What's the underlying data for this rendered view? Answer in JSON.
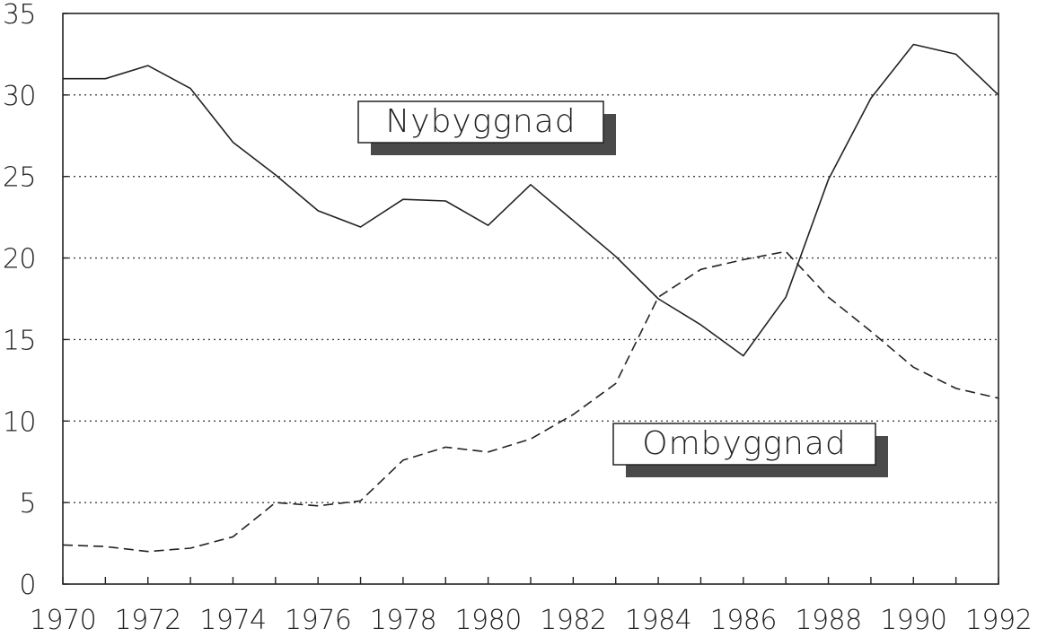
{
  "chart_data": {
    "type": "line",
    "title": "",
    "xlabel": "",
    "ylabel": "",
    "x": [
      1970,
      1971,
      1972,
      1973,
      1974,
      1975,
      1976,
      1977,
      1978,
      1979,
      1980,
      1981,
      1982,
      1983,
      1984,
      1985,
      1986,
      1987,
      1988,
      1989,
      1990,
      1991,
      1992
    ],
    "x_ticks": [
      "1970",
      "1972",
      "1974",
      "1976",
      "1978",
      "1980",
      "1982",
      "1984",
      "1986",
      "1988",
      "1990",
      "1992"
    ],
    "y_ticks": [
      "0",
      "5",
      "10",
      "15",
      "20",
      "25",
      "30",
      "35"
    ],
    "xlim": [
      1970,
      1992
    ],
    "ylim": [
      0,
      35
    ],
    "grid": true,
    "series": [
      {
        "name": "Nybyggnad",
        "style": "solid",
        "values": [
          31.0,
          31.0,
          31.8,
          30.4,
          27.1,
          25.1,
          22.9,
          21.9,
          23.6,
          23.5,
          22.0,
          24.5,
          22.3,
          20.1,
          17.5,
          15.9,
          14.0,
          17.6,
          24.8,
          29.8,
          33.1,
          32.5,
          30.0
        ]
      },
      {
        "name": "Ombyggnad",
        "style": "dashed",
        "values": [
          2.4,
          2.3,
          2.0,
          2.2,
          2.9,
          5.0,
          4.8,
          5.1,
          7.6,
          8.4,
          8.1,
          8.9,
          10.4,
          12.3,
          17.6,
          19.3,
          19.9,
          20.4,
          17.6,
          15.5,
          13.3,
          12.0,
          11.4
        ]
      }
    ]
  }
}
